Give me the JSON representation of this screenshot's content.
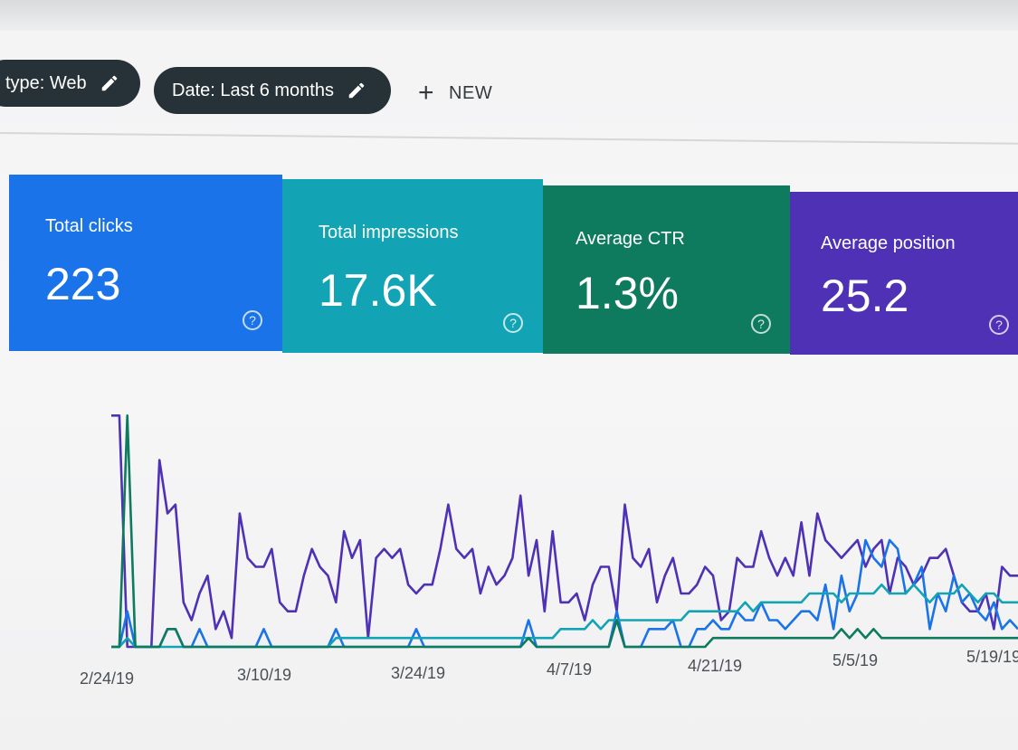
{
  "filters": {
    "type_chip": "type: Web",
    "date_chip": "Date: Last 6 months",
    "new_label": "NEW"
  },
  "metrics": [
    {
      "label": "Total clicks",
      "value": "223",
      "color": "#1a73e8"
    },
    {
      "label": "Total impressions",
      "value": "17.6K",
      "color": "#12a4b4"
    },
    {
      "label": "Average CTR",
      "value": "1.3%",
      "color": "#0e7a5e"
    },
    {
      "label": "Average position",
      "value": "25.2",
      "color": "#4e31b5"
    }
  ],
  "icons": {
    "edit": "pencil-icon",
    "add": "plus-icon",
    "help": "help-circle-icon"
  },
  "chart_data": {
    "type": "line",
    "x_tick_labels": [
      "2/24/19",
      "3/10/19",
      "3/24/19",
      "4/7/19",
      "4/21/19",
      "5/5/19",
      "5/19/19"
    ],
    "series": [
      {
        "color": "#4e31b5",
        "values": [
          26,
          26,
          0,
          0,
          0,
          0,
          21,
          15,
          16,
          5,
          3,
          6,
          8,
          2,
          4,
          1,
          15,
          10,
          9,
          9,
          11,
          5,
          4,
          4,
          8,
          11,
          9,
          8,
          5,
          13,
          10,
          12,
          1,
          10,
          11,
          10,
          11,
          7,
          6,
          7,
          7,
          11,
          16,
          11,
          10,
          11,
          6,
          9,
          7,
          8,
          10,
          17,
          8,
          12,
          4,
          13,
          5,
          5,
          6,
          3,
          7,
          9,
          9,
          4,
          16,
          10,
          9,
          11,
          5,
          8,
          10,
          6,
          6,
          7,
          9,
          8,
          3,
          4,
          10,
          9,
          9,
          13,
          10,
          8,
          10,
          8,
          14,
          8,
          15,
          12,
          11,
          10,
          11,
          12,
          9,
          11,
          12,
          6,
          10,
          9,
          7,
          8,
          10,
          10,
          11,
          8,
          5,
          4,
          4,
          6,
          2,
          9,
          8,
          8
        ]
      },
      {
        "color": "#1a73e8",
        "values": [
          0,
          0,
          4,
          0,
          0,
          0,
          0,
          2,
          2,
          0,
          0,
          2,
          0,
          0,
          0,
          0,
          0,
          0,
          0,
          2,
          0,
          0,
          0,
          0,
          0,
          0,
          0,
          0,
          2,
          0,
          0,
          0,
          0,
          0,
          0,
          0,
          0,
          0,
          2,
          0,
          0,
          0,
          0,
          0,
          0,
          0,
          0,
          0,
          0,
          0,
          0,
          0,
          3,
          0,
          0,
          0,
          0,
          0,
          0,
          0,
          0,
          0,
          0,
          4,
          0,
          0,
          0,
          2,
          2,
          2,
          3,
          0,
          0,
          2,
          2,
          3,
          2,
          2,
          4,
          3,
          3,
          5,
          3,
          3,
          2,
          3,
          4,
          4,
          3,
          7,
          2,
          8,
          4,
          6,
          12,
          10,
          9,
          12,
          11,
          6,
          7,
          9,
          2,
          6,
          4,
          8,
          5,
          6,
          4,
          3,
          5,
          2,
          3,
          2
        ]
      },
      {
        "color": "#12a4b4",
        "values": [
          0,
          0,
          1,
          0,
          0,
          0,
          0,
          0,
          0,
          0,
          0,
          0,
          0,
          0,
          0,
          0,
          0,
          0,
          0,
          0,
          0,
          0,
          0,
          0,
          0,
          0,
          0,
          0,
          1,
          1,
          1,
          1,
          1,
          1,
          1,
          1,
          1,
          1,
          1,
          1,
          1,
          1,
          1,
          1,
          1,
          1,
          1,
          1,
          1,
          1,
          1,
          1,
          1,
          1,
          1,
          1,
          2,
          2,
          2,
          2,
          3,
          2,
          3,
          3,
          3,
          3,
          3,
          3,
          3,
          3,
          3,
          3,
          4,
          4,
          4,
          4,
          4,
          4,
          4,
          5,
          4,
          5,
          5,
          5,
          5,
          5,
          5,
          6,
          6,
          6,
          6,
          5,
          6,
          6,
          6,
          6,
          7,
          6,
          6,
          6,
          7,
          6,
          5,
          6,
          6,
          6,
          7,
          6,
          5,
          6,
          6,
          5,
          5,
          5
        ]
      },
      {
        "color": "#0e7a5e",
        "values": [
          0,
          0,
          26,
          0,
          0,
          0,
          0,
          2,
          2,
          0,
          0,
          0,
          0,
          0,
          0,
          0,
          0,
          0,
          0,
          0,
          0,
          0,
          0,
          0,
          0,
          0,
          0,
          0,
          0,
          0,
          0,
          0,
          0,
          0,
          0,
          0,
          0,
          0,
          0,
          0,
          0,
          0,
          0,
          0,
          0,
          0,
          0,
          0,
          0,
          0,
          0,
          0,
          1,
          0,
          0,
          0,
          0,
          0,
          0,
          0,
          0,
          0,
          0,
          3,
          0,
          0,
          0,
          0,
          0,
          0,
          0,
          0,
          0,
          0,
          0,
          1,
          1,
          1,
          1,
          1,
          1,
          1,
          1,
          1,
          1,
          1,
          1,
          1,
          1,
          1,
          1,
          2,
          1,
          2,
          1,
          2,
          1,
          1,
          1,
          1,
          1,
          1,
          1,
          1,
          1,
          1,
          1,
          1,
          1,
          1,
          1,
          1,
          1,
          1
        ]
      }
    ],
    "ylim": [
      0,
      30
    ],
    "grid": false,
    "legend": "none"
  }
}
